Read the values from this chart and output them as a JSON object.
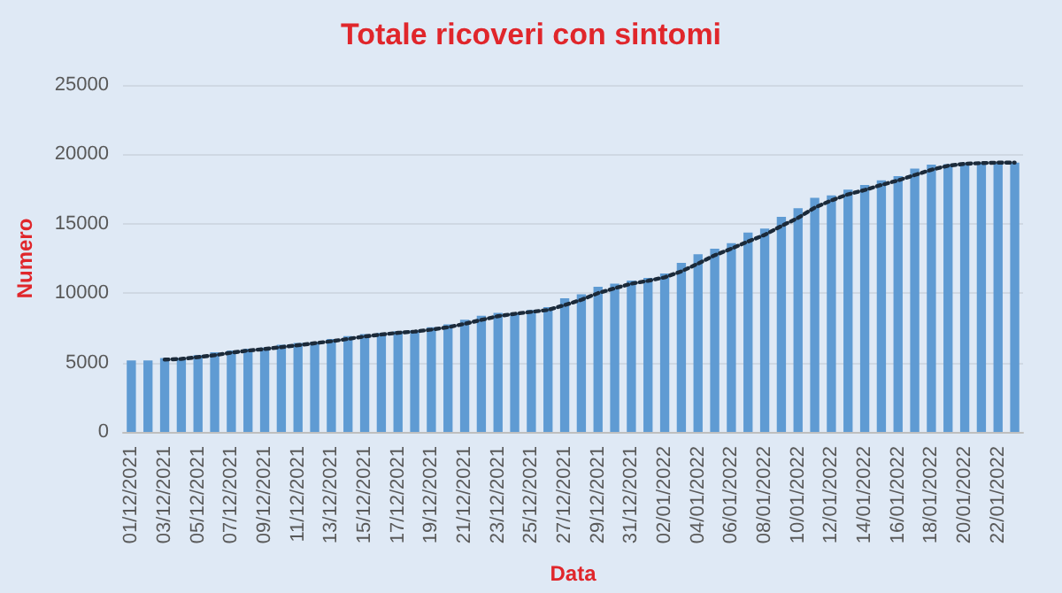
{
  "chart_data": {
    "type": "bar",
    "title": "Totale ricoveri con sintomi",
    "xlabel": "Data",
    "ylabel": "Numero",
    "categories": [
      "01/12/2021",
      null,
      "03/12/2021",
      null,
      "05/12/2021",
      null,
      "07/12/2021",
      null,
      "09/12/2021",
      null,
      "11/12/2021",
      null,
      "13/12/2021",
      null,
      "15/12/2021",
      null,
      "17/12/2021",
      null,
      "19/12/2021",
      null,
      "21/12/2021",
      null,
      "23/12/2021",
      null,
      "25/12/2021",
      null,
      "27/12/2021",
      null,
      "29/12/2021",
      null,
      "31/12/2021",
      null,
      "02/01/2022",
      null,
      "04/01/2022",
      null,
      "06/01/2022",
      null,
      "08/01/2022",
      null,
      "10/01/2022",
      null,
      "12/01/2022",
      null,
      "14/01/2022",
      null,
      "16/01/2022",
      null,
      "18/01/2022",
      null,
      "20/01/2022",
      null,
      "22/01/2022",
      null
    ],
    "series": [
      {
        "color": "#5f9bd3",
        "values": [
          5150,
          5150,
          5320,
          5320,
          5530,
          5740,
          5860,
          5990,
          6070,
          6280,
          6410,
          6490,
          6700,
          6910,
          7040,
          7120,
          7250,
          7330,
          7540,
          7750,
          8080,
          8370,
          8580,
          8580,
          8790,
          9000,
          9630,
          9920,
          10460,
          10680,
          10900,
          11100,
          11420,
          12180,
          12800,
          13200,
          13600,
          14360,
          14650,
          15500,
          16120,
          16870,
          17040,
          17460,
          17800,
          18130,
          18430,
          18970,
          19260,
          19300,
          19400,
          19400,
          19400,
          19400
        ]
      },
      {
        "type": "line",
        "color": "#1b2a3a",
        "line_style": "dotted",
        "marker": "none",
        "values": [
          null,
          null,
          5210,
          5260,
          5390,
          5530,
          5710,
          5860,
          5970,
          6110,
          6250,
          6390,
          6530,
          6700,
          6880,
          7020,
          7140,
          7230,
          7370,
          7540,
          7790,
          8070,
          8340,
          8510,
          8650,
          8790,
          9140,
          9520,
          10000,
          10350,
          10680,
          10890,
          11140,
          11570,
          12130,
          12730,
          13200,
          13720,
          14200,
          14840,
          15420,
          16160,
          16680,
          17120,
          17430,
          17800,
          18120,
          18510,
          18890,
          19180,
          19320,
          19370,
          19400,
          19400
        ]
      }
    ],
    "ylim": [
      0,
      25000
    ],
    "yticks": [
      0,
      5000,
      10000,
      15000,
      20000,
      25000
    ],
    "grid": "y"
  }
}
